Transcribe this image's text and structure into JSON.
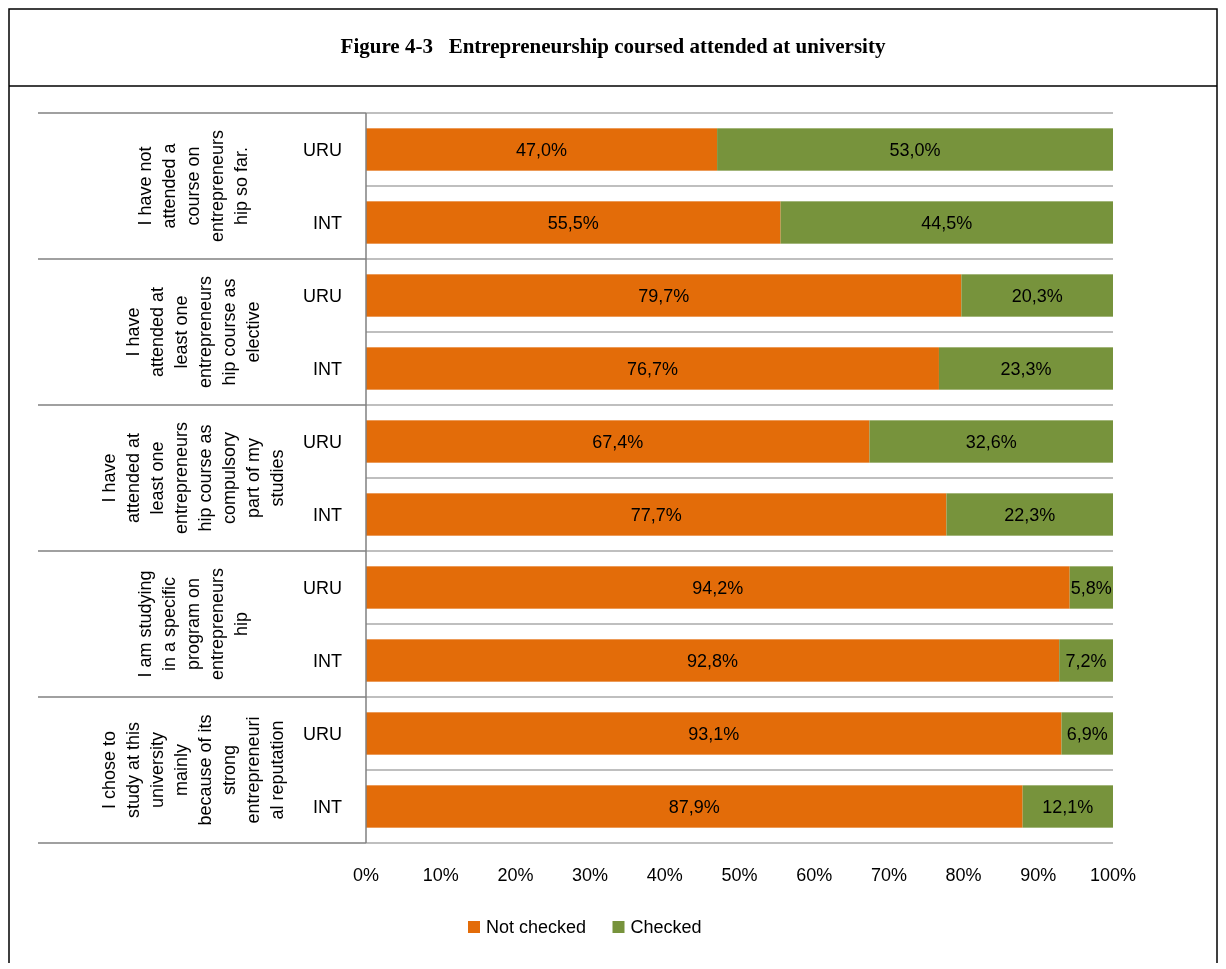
{
  "chart_data": {
    "type": "bar",
    "orientation": "horizontal",
    "stacked": true,
    "title": "Figure 4-3   Entrepreneurship coursed attended at university",
    "categories": [
      "URU",
      "INT",
      "URU",
      "INT",
      "URU",
      "INT",
      "URU",
      "INT",
      "URU",
      "INT"
    ],
    "annotations": [
      "I have not\nattended a\ncourse on\nentrepreneurs\nhip so far.",
      "I have\nattended at\nleast one\nentrepreneurs\nhip course as\nelective",
      "I have\nattended at\nleast one\nentrepreneurs\nhip course as\ncompulsory\npart of my\nstudies",
      "I am studying\nin a specific\nprogram on\nentrepreneurs\nhip",
      "I chose to\nstudy at this\nuniversity\nmainly\nbecause of its\nstrong\nentrepreneuri\nal reputation"
    ],
    "series": [
      {
        "name": "Not checked",
        "color": "#e36c09",
        "values": [
          47.0,
          55.5,
          79.7,
          76.7,
          67.4,
          77.7,
          94.2,
          92.8,
          93.1,
          87.9
        ],
        "value_labels": [
          "47,0%",
          "55,5%",
          "79,7%",
          "76,7%",
          "67,4%",
          "77,7%",
          "94,2%",
          "92,8%",
          "93,1%",
          "87,9%"
        ]
      },
      {
        "name": "Checked",
        "color": "#77933c",
        "values": [
          53.0,
          44.5,
          20.3,
          23.3,
          32.6,
          22.3,
          5.8,
          7.2,
          6.9,
          12.1
        ],
        "value_labels": [
          "53,0%",
          "44,5%",
          "20,3%",
          "23,3%",
          "32,6%",
          "22,3%",
          "5,8%",
          "7,2%",
          "6,9%",
          "12,1%"
        ]
      }
    ],
    "xlim": [
      0,
      100
    ],
    "xticks": [
      {
        "value": 0,
        "label": "0%"
      },
      {
        "value": 10,
        "label": "10%"
      },
      {
        "value": 20,
        "label": "20%"
      },
      {
        "value": 30,
        "label": "30%"
      },
      {
        "value": 40,
        "label": "40%"
      },
      {
        "value": 50,
        "label": "50%"
      },
      {
        "value": 60,
        "label": "60%"
      },
      {
        "value": 70,
        "label": "70%"
      },
      {
        "value": 80,
        "label": "80%"
      },
      {
        "value": 90,
        "label": "90%"
      },
      {
        "value": 100,
        "label": "100%"
      }
    ],
    "grid": "y",
    "legend": "bottom"
  }
}
